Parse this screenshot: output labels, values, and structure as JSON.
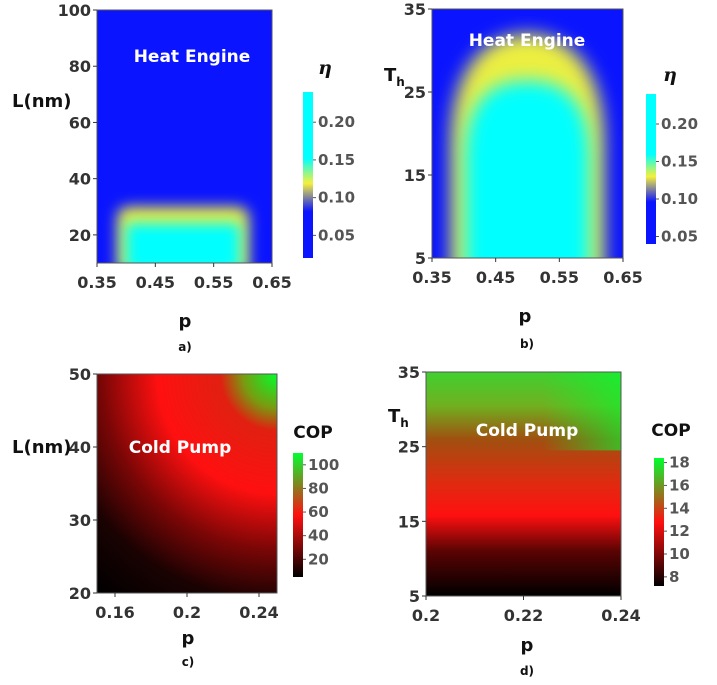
{
  "chart_data": [
    {
      "panel_label": "a)",
      "type": "heatmap",
      "xlabel": "p",
      "ylabel": "L(nm)",
      "xlim": [
        0.35,
        0.65
      ],
      "ylim": [
        10,
        100
      ],
      "xticks": [
        "0.35",
        "0.45",
        "0.55",
        "0.65"
      ],
      "yticks": [
        "20",
        "40",
        "60",
        "80",
        "100"
      ],
      "annotation": "Heat Engine",
      "colorbar": {
        "title": "η",
        "ticks": [
          "0.05",
          "0.10",
          "0.15",
          "0.20"
        ],
        "range": [
          0.02,
          0.24
        ],
        "stops": [
          "#0a14ff",
          "#0a14ff",
          "#f5f03c",
          "#00ffff",
          "#00ffff"
        ]
      },
      "region": {
        "p_range": [
          0.385,
          0.61
        ],
        "y_max": 30
      }
    },
    {
      "panel_label": "b)",
      "type": "heatmap",
      "xlabel": "p",
      "ylabel": "T",
      "ylabel_sub": "h",
      "xlim": [
        0.35,
        0.65
      ],
      "ylim": [
        5,
        35
      ],
      "xticks": [
        "0.35",
        "0.45",
        "0.55",
        "0.65"
      ],
      "yticks": [
        "5",
        "15",
        "25",
        "35"
      ],
      "annotation": "Heat Engine",
      "colorbar": {
        "title": "η",
        "ticks": [
          "0.05",
          "0.10",
          "0.15",
          "0.20"
        ],
        "range": [
          0.04,
          0.24
        ],
        "stops": [
          "#0a14ff",
          "#0a14ff",
          "#f5f03c",
          "#00ffff",
          "#00ffff"
        ]
      },
      "region": {
        "p_center": 0.5,
        "p_halfwidth": 0.12,
        "y_peak": 32
      }
    },
    {
      "panel_label": "c)",
      "type": "heatmap",
      "xlabel": "p",
      "ylabel": "L(nm)",
      "xlim": [
        0.15,
        0.25
      ],
      "ylim": [
        20,
        50
      ],
      "xticks": [
        "0.16",
        "0.2",
        "0.24"
      ],
      "yticks": [
        "20",
        "30",
        "40",
        "50"
      ],
      "annotation": "Cold Pump",
      "colorbar": {
        "title": "COP",
        "ticks": [
          "20",
          "40",
          "60",
          "80",
          "100"
        ],
        "range": [
          5,
          110
        ],
        "stops": [
          "#000000",
          "#ff1010",
          "#00ff30"
        ]
      }
    },
    {
      "panel_label": "d)",
      "type": "heatmap",
      "xlabel": "p",
      "ylabel": "T",
      "ylabel_sub": "h",
      "xlim": [
        0.2,
        0.24
      ],
      "ylim": [
        5,
        35
      ],
      "xticks": [
        "0.2",
        "0.22",
        "0.24"
      ],
      "yticks": [
        "5",
        "15",
        "25",
        "35"
      ],
      "annotation": "Cold Pump",
      "colorbar": {
        "title": "COP",
        "ticks": [
          "8",
          "10",
          "12",
          "14",
          "16",
          "18"
        ],
        "range": [
          7.2,
          18.4
        ],
        "stops": [
          "#000000",
          "#ff1010",
          "#00ff30"
        ]
      }
    }
  ]
}
